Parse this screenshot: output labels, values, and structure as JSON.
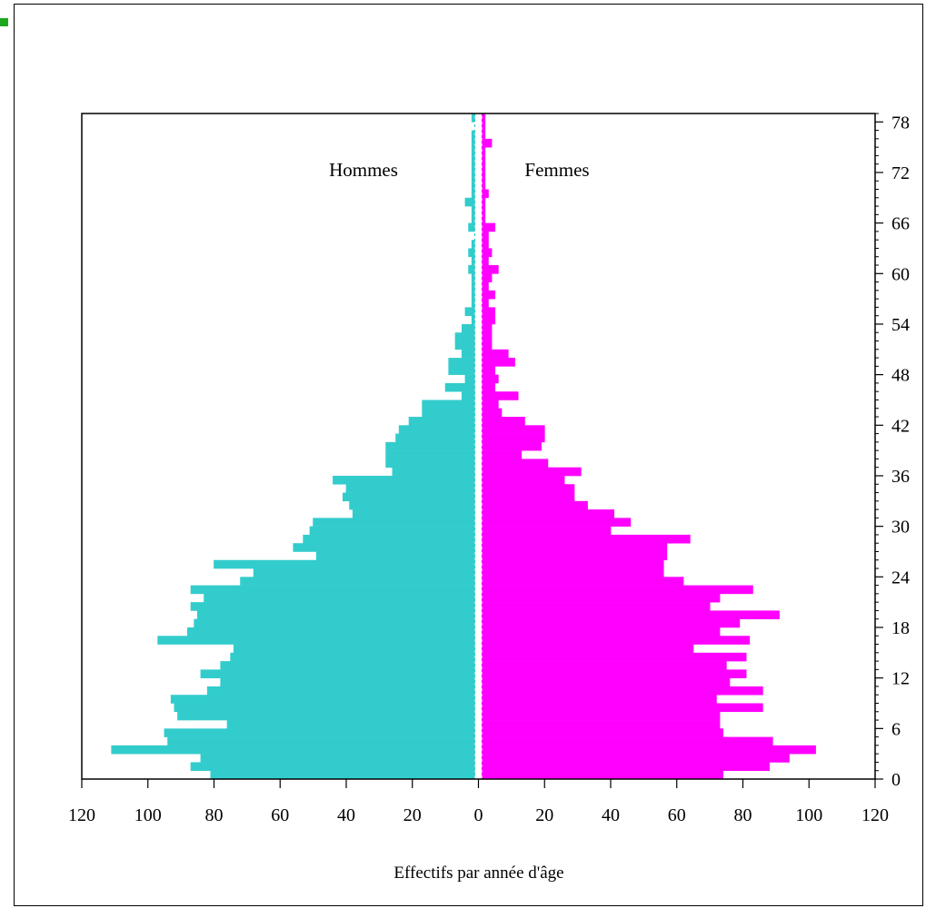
{
  "chart_data": {
    "type": "bar",
    "orientation": "horizontal",
    "subtype": "population-pyramid",
    "ages": [
      0,
      1,
      2,
      3,
      4,
      5,
      6,
      7,
      8,
      9,
      10,
      11,
      12,
      13,
      14,
      15,
      16,
      17,
      18,
      19,
      20,
      21,
      22,
      23,
      24,
      25,
      26,
      27,
      28,
      29,
      30,
      31,
      32,
      33,
      34,
      35,
      36,
      37,
      38,
      39,
      40,
      41,
      42,
      43,
      44,
      45,
      46,
      47,
      48,
      49,
      50,
      51,
      52,
      53,
      54,
      55,
      56,
      57,
      58,
      59,
      60,
      61,
      62,
      63,
      64,
      65,
      66,
      67,
      68,
      69,
      70,
      71,
      72,
      73,
      74,
      75,
      76,
      77,
      78
    ],
    "series": [
      {
        "name": "Hommes",
        "color": "#33cccc",
        "side": "left",
        "values": [
          80,
          86,
          83,
          110,
          93,
          94,
          75,
          90,
          91,
          92,
          81,
          77,
          83,
          77,
          74,
          73,
          96,
          87,
          85,
          84,
          86,
          82,
          86,
          71,
          67,
          79,
          48,
          55,
          52,
          50,
          49,
          37,
          38,
          40,
          39,
          43,
          25,
          27,
          27,
          27,
          24,
          23,
          20,
          16,
          16,
          4,
          9,
          3,
          8,
          8,
          4,
          6,
          6,
          4,
          1,
          3,
          1,
          1,
          1,
          1,
          2,
          1,
          2,
          1,
          0,
          2,
          1,
          1,
          3,
          1,
          1,
          1,
          1,
          1,
          1,
          1,
          1,
          0,
          1
        ]
      },
      {
        "name": "Femmes",
        "color": "#ff00ff",
        "side": "right",
        "values": [
          73,
          87,
          93,
          101,
          88,
          73,
          72,
          72,
          85,
          71,
          85,
          75,
          80,
          74,
          80,
          64,
          81,
          72,
          78,
          90,
          69,
          72,
          82,
          61,
          55,
          55,
          56,
          56,
          63,
          39,
          45,
          40,
          32,
          28,
          28,
          25,
          30,
          20,
          12,
          18,
          19,
          19,
          13,
          6,
          5,
          11,
          4,
          5,
          4,
          10,
          8,
          3,
          3,
          3,
          4,
          4,
          2,
          4,
          2,
          3,
          5,
          2,
          3,
          2,
          2,
          4,
          1,
          1,
          1,
          2,
          1,
          1,
          1,
          1,
          1,
          3,
          1,
          1,
          1
        ]
      }
    ],
    "labels": {
      "left": "Hommes",
      "right": "Femmes"
    },
    "xlabel": "Effectifs par année d'âge",
    "ylabel": "",
    "x_ticks": [
      "120",
      "100",
      "80",
      "60",
      "40",
      "20",
      "0",
      "20",
      "40",
      "60",
      "80",
      "100",
      "120"
    ],
    "y_ticks": [
      "0",
      "6",
      "12",
      "18",
      "24",
      "30",
      "36",
      "42",
      "48",
      "54",
      "60",
      "66",
      "72",
      "78"
    ],
    "xlim": [
      -120,
      120
    ],
    "ylim": [
      0,
      79
    ],
    "y_axis_side": "right",
    "grid": false,
    "legend": "none"
  }
}
